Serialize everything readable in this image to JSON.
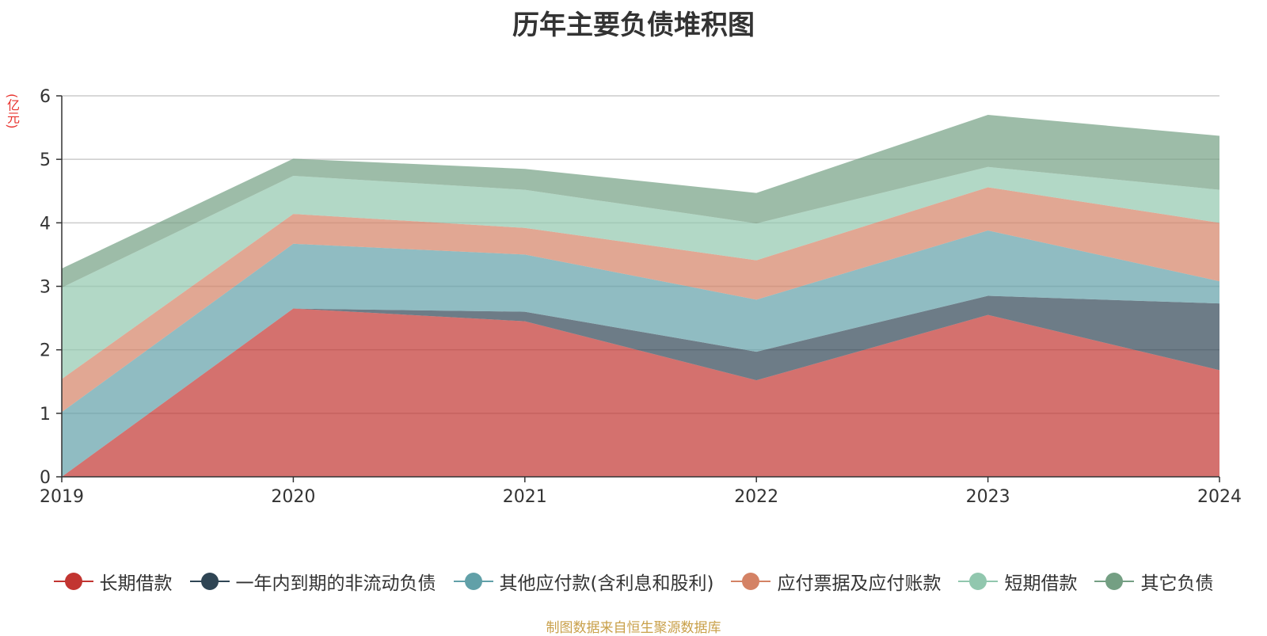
{
  "title": "历年主要负债堆积图",
  "unit_label": "(亿元)",
  "source_note": "制图数据来自恒生聚源数据库",
  "chart_data": {
    "type": "area",
    "stacked": true,
    "x": [
      "2019",
      "2020",
      "2021",
      "2022",
      "2023",
      "2024"
    ],
    "ylim": [
      0,
      6
    ],
    "yticks": [
      0,
      1,
      2,
      3,
      4,
      5,
      6
    ],
    "grid": true,
    "legend_position": "bottom",
    "series": [
      {
        "name": "长期借款",
        "color": "#c23531",
        "values": [
          0,
          2.65,
          2.45,
          1.52,
          2.55,
          1.68
        ]
      },
      {
        "name": "一年内到期的非流动负债",
        "color": "#2f4554",
        "values": [
          0,
          0,
          0.15,
          0.45,
          0.3,
          1.05
        ]
      },
      {
        "name": "其他应付款(含利息和股利)",
        "color": "#61a0a8",
        "values": [
          1.02,
          1.02,
          0.9,
          0.82,
          1.03,
          0.35
        ]
      },
      {
        "name": "应付票据及应付账款",
        "color": "#d48265",
        "values": [
          0.52,
          0.47,
          0.42,
          0.62,
          0.68,
          0.92
        ]
      },
      {
        "name": "短期借款",
        "color": "#91c7ae",
        "values": [
          1.44,
          0.6,
          0.6,
          0.58,
          0.32,
          0.52
        ]
      },
      {
        "name": "其它负债",
        "color": "#749f83",
        "values": [
          0.3,
          0.27,
          0.33,
          0.48,
          0.82,
          0.85
        ]
      }
    ]
  }
}
